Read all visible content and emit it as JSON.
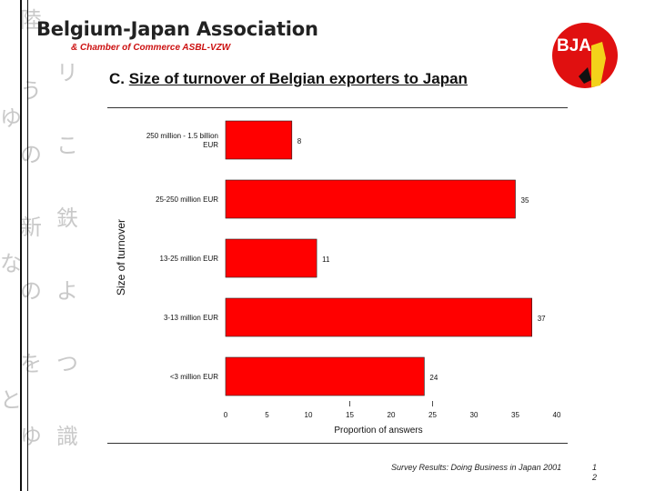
{
  "header": {
    "org_name": "Belgium-Japan Association",
    "org_sub": "& Chamber of Commerce ASBL-VZW",
    "badge_text": "BJA"
  },
  "slide": {
    "title_prefix": "C.",
    "title": "Size of turnover of Belgian exporters to Japan"
  },
  "footer": {
    "source": "Survey Results: Doing Business in Japan 2001",
    "page_top": "1",
    "page_bottom": "2"
  },
  "colors": {
    "bar": "#ff0000",
    "accent": "#cc1111"
  },
  "chart_data": {
    "type": "bar",
    "orientation": "horizontal",
    "categories": [
      "250 million - 1.5 billion EUR",
      "25-250 million EUR",
      "13-25 million EUR",
      "3-13 million EUR",
      "<3 million EUR"
    ],
    "values": [
      8,
      35,
      11,
      37,
      24
    ],
    "xlabel": "Proportion of answers",
    "ylabel": "Size of turnover",
    "xlim": [
      0,
      40
    ],
    "xticks": [
      0,
      5,
      10,
      15,
      20,
      25,
      30,
      35,
      40
    ],
    "grid": false,
    "legend": "none"
  }
}
